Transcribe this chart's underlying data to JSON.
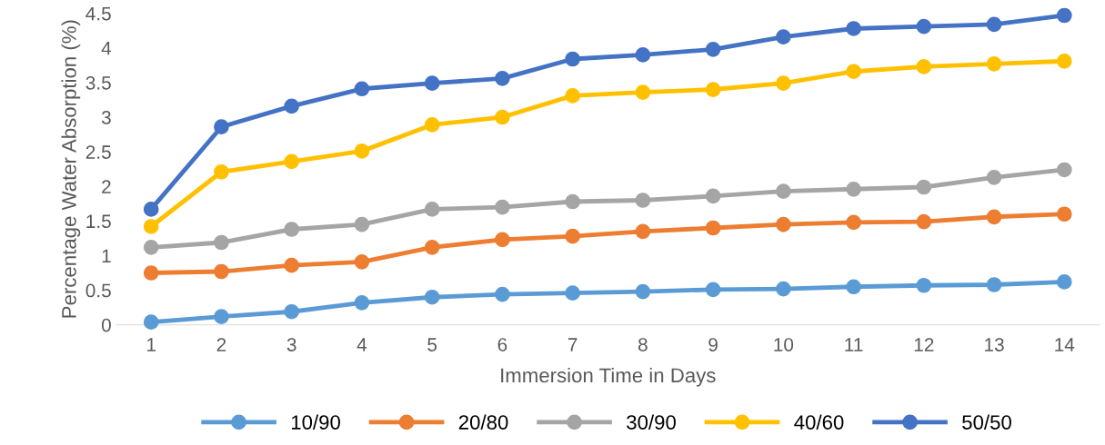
{
  "chart_data": {
    "type": "line",
    "xlabel": "Immersion Time in Days",
    "ylabel": "Percentage Water Absorption (%)",
    "categories": [
      "1",
      "2",
      "3",
      "4",
      "5",
      "6",
      "7",
      "8",
      "9",
      "10",
      "11",
      "12",
      "13",
      "14"
    ],
    "series": [
      {
        "name": "10/90",
        "color": "#5b9bd5",
        "values": [
          0.04,
          0.12,
          0.19,
          0.32,
          0.4,
          0.44,
          0.46,
          0.48,
          0.51,
          0.52,
          0.55,
          0.57,
          0.58,
          0.62
        ]
      },
      {
        "name": "20/80",
        "color": "#ed7d31",
        "values": [
          0.75,
          0.77,
          0.86,
          0.91,
          1.12,
          1.23,
          1.28,
          1.35,
          1.4,
          1.45,
          1.48,
          1.49,
          1.56,
          1.6
        ]
      },
      {
        "name": "30/90",
        "color": "#a5a5a5",
        "values": [
          1.12,
          1.19,
          1.38,
          1.45,
          1.67,
          1.7,
          1.78,
          1.8,
          1.86,
          1.93,
          1.96,
          1.99,
          2.13,
          2.24
        ]
      },
      {
        "name": "40/60",
        "color": "#ffc000",
        "values": [
          1.42,
          2.21,
          2.36,
          2.51,
          2.89,
          3.0,
          3.31,
          3.36,
          3.4,
          3.49,
          3.66,
          3.73,
          3.77,
          3.81
        ]
      },
      {
        "name": "50/50",
        "color": "#4472c4",
        "values": [
          1.67,
          2.86,
          3.16,
          3.41,
          3.49,
          3.56,
          3.84,
          3.9,
          3.98,
          4.16,
          4.28,
          4.31,
          4.34,
          4.47
        ]
      }
    ],
    "ylim": [
      0,
      4.5
    ],
    "yticks": [
      0,
      0.5,
      1,
      1.5,
      2,
      2.5,
      3,
      3.5,
      4,
      4.5
    ],
    "grid": false,
    "legend": "bottom",
    "marker": "circle",
    "line_style": "solid"
  }
}
